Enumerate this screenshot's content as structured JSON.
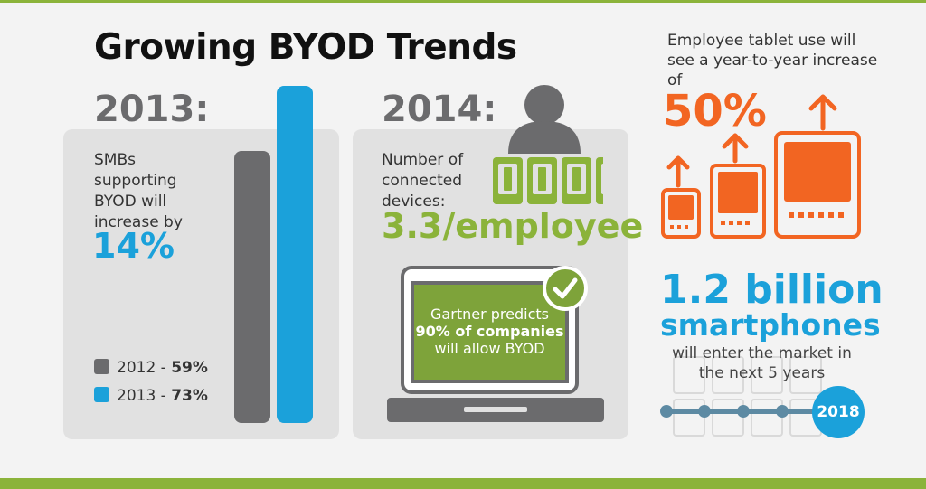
{
  "title": "Growing BYOD Trends",
  "colors": {
    "green": "#8bb33a",
    "blue": "#1ba1da",
    "orange": "#f26522",
    "gray": "#6b6b6d"
  },
  "section_2013": {
    "year": "2013:",
    "description": "SMBs supporting BYOD will increase by",
    "highlight": "14%",
    "legend": [
      {
        "year_label": "2012 - ",
        "value_label": "59%",
        "value": 59
      },
      {
        "year_label": "2013 - ",
        "value_label": "73%",
        "value": 73
      }
    ]
  },
  "section_2014": {
    "year": "2014:",
    "description": "Number of connected devices:",
    "highlight": "3.3/employee",
    "gartner_line1": "Gartner predicts",
    "gartner_line2": "90% of companies",
    "gartner_line3": "will allow BYOD",
    "icons": [
      "person-icon",
      "phone-icon",
      "laptop-icon",
      "checkmark-icon"
    ]
  },
  "tablet": {
    "text": "Employee tablet use will see a year-to-year increase of",
    "highlight": "50%",
    "icons": [
      "arrow-up-icon",
      "tablet-icon"
    ]
  },
  "smartphones": {
    "line1": "1.2 billion",
    "line2": "smartphones",
    "text": "will enter the market in the next 5 years",
    "year_badge": "2018"
  }
}
